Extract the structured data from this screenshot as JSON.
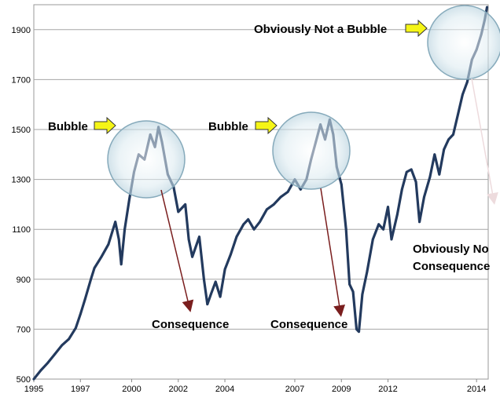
{
  "chart_data": {
    "type": "line",
    "title": "",
    "xlabel": "",
    "ylabel": "",
    "xlim": [
      1995.0,
      2014.5
    ],
    "ylim": [
      500,
      2000
    ],
    "x_ticks": [
      "1995",
      "1997",
      "2000",
      "2002",
      "2004",
      "2007",
      "2009",
      "2012",
      "2014"
    ],
    "x_tick_values": [
      1995.0,
      1997.0,
      1999.2,
      2001.2,
      2003.2,
      2006.2,
      2008.2,
      2010.2,
      2014.0
    ],
    "y_ticks": [
      "500",
      "700",
      "900",
      "1100",
      "1300",
      "1500",
      "1700",
      "1900"
    ],
    "y_tick_values": [
      500,
      700,
      900,
      1100,
      1300,
      1500,
      1700,
      1900
    ],
    "grid": "horizontal",
    "series": [
      {
        "color": "#233a5e",
        "points": [
          [
            1995.0,
            500
          ],
          [
            1995.3,
            535
          ],
          [
            1995.6,
            565
          ],
          [
            1995.9,
            600
          ],
          [
            1996.2,
            635
          ],
          [
            1996.5,
            660
          ],
          [
            1996.8,
            705
          ],
          [
            1997.0,
            760
          ],
          [
            1997.2,
            820
          ],
          [
            1997.45,
            900
          ],
          [
            1997.6,
            945
          ],
          [
            1997.9,
            990
          ],
          [
            1998.2,
            1040
          ],
          [
            1998.5,
            1130
          ],
          [
            1998.65,
            1060
          ],
          [
            1998.75,
            960
          ],
          [
            1998.9,
            1100
          ],
          [
            1999.1,
            1220
          ],
          [
            1999.3,
            1330
          ],
          [
            1999.5,
            1400
          ],
          [
            1999.75,
            1380
          ],
          [
            2000.0,
            1480
          ],
          [
            2000.2,
            1430
          ],
          [
            2000.35,
            1510
          ],
          [
            2000.5,
            1450
          ],
          [
            2000.75,
            1320
          ],
          [
            2001.0,
            1270
          ],
          [
            2001.2,
            1170
          ],
          [
            2001.5,
            1200
          ],
          [
            2001.65,
            1060
          ],
          [
            2001.8,
            990
          ],
          [
            2002.1,
            1070
          ],
          [
            2002.3,
            900
          ],
          [
            2002.45,
            800
          ],
          [
            2002.6,
            840
          ],
          [
            2002.8,
            890
          ],
          [
            2003.0,
            830
          ],
          [
            2003.2,
            940
          ],
          [
            2003.45,
            1000
          ],
          [
            2003.7,
            1070
          ],
          [
            2004.0,
            1120
          ],
          [
            2004.2,
            1140
          ],
          [
            2004.45,
            1100
          ],
          [
            2004.7,
            1130
          ],
          [
            2005.0,
            1180
          ],
          [
            2005.3,
            1200
          ],
          [
            2005.6,
            1230
          ],
          [
            2005.9,
            1250
          ],
          [
            2006.2,
            1300
          ],
          [
            2006.45,
            1260
          ],
          [
            2006.7,
            1300
          ],
          [
            2006.9,
            1380
          ],
          [
            2007.1,
            1450
          ],
          [
            2007.3,
            1520
          ],
          [
            2007.5,
            1460
          ],
          [
            2007.7,
            1540
          ],
          [
            2007.85,
            1480
          ],
          [
            2008.0,
            1350
          ],
          [
            2008.2,
            1280
          ],
          [
            2008.4,
            1100
          ],
          [
            2008.55,
            880
          ],
          [
            2008.7,
            850
          ],
          [
            2008.85,
            700
          ],
          [
            2008.95,
            690
          ],
          [
            2009.1,
            840
          ],
          [
            2009.3,
            930
          ],
          [
            2009.55,
            1060
          ],
          [
            2009.8,
            1120
          ],
          [
            2010.0,
            1100
          ],
          [
            2010.2,
            1190
          ],
          [
            2010.35,
            1060
          ],
          [
            2010.6,
            1160
          ],
          [
            2010.8,
            1260
          ],
          [
            2011.0,
            1330
          ],
          [
            2011.2,
            1340
          ],
          [
            2011.4,
            1290
          ],
          [
            2011.55,
            1130
          ],
          [
            2011.75,
            1230
          ],
          [
            2012.0,
            1310
          ],
          [
            2012.2,
            1400
          ],
          [
            2012.4,
            1320
          ],
          [
            2012.6,
            1420
          ],
          [
            2012.8,
            1460
          ],
          [
            2013.0,
            1480
          ],
          [
            2013.2,
            1560
          ],
          [
            2013.4,
            1640
          ],
          [
            2013.6,
            1690
          ],
          [
            2013.8,
            1780
          ],
          [
            2014.0,
            1820
          ],
          [
            2014.2,
            1880
          ],
          [
            2014.35,
            1940
          ],
          [
            2014.45,
            1990
          ]
        ]
      }
    ],
    "annotations": [
      {
        "text": "Bubble",
        "highlight": "circle"
      },
      {
        "text": "Bubble",
        "highlight": "circle"
      },
      {
        "text": "Obviously Not a Bubble",
        "highlight": "circle"
      },
      {
        "text": "Consequence"
      },
      {
        "text": "Consequence"
      },
      {
        "text": "Obviously No",
        "continued": "Consequence"
      }
    ]
  }
}
